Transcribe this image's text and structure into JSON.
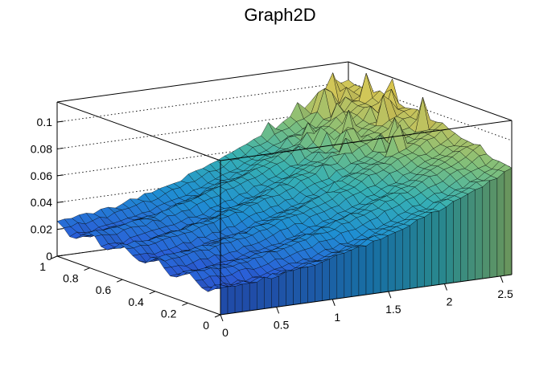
{
  "chart_data": {
    "type": "surface",
    "title": "Graph2D",
    "xlabel": "",
    "ylabel": "",
    "zlabel": "",
    "xlim": [
      0,
      2.6
    ],
    "ylim": [
      0,
      1
    ],
    "zlim": [
      0,
      0.115
    ],
    "x_ticks": [
      "0",
      "0.5",
      "1",
      "1.5",
      "2",
      "2.5"
    ],
    "y_ticks": [
      "0",
      "0.2",
      "0.4",
      "0.6",
      "0.8",
      "1"
    ],
    "z_ticks": [
      "0",
      "0.02",
      "0.04",
      "0.06",
      "0.08",
      "0.1"
    ],
    "grid": true,
    "colormap": [
      "#35338f",
      "#2a5fd8",
      "#1f8fd2",
      "#36b0b3",
      "#7fbf7b",
      "#c7c25b",
      "#f9d84a"
    ],
    "grid_points": {
      "nx": 40,
      "ny": 26
    },
    "surface": {
      "base_at_x0": 0.022,
      "growth_max": 0.078,
      "y_dip_at_y0": 0.018,
      "ripples_along_y": 5,
      "spike_region_x_min": 1.5,
      "spike_max": 0.025
    }
  }
}
